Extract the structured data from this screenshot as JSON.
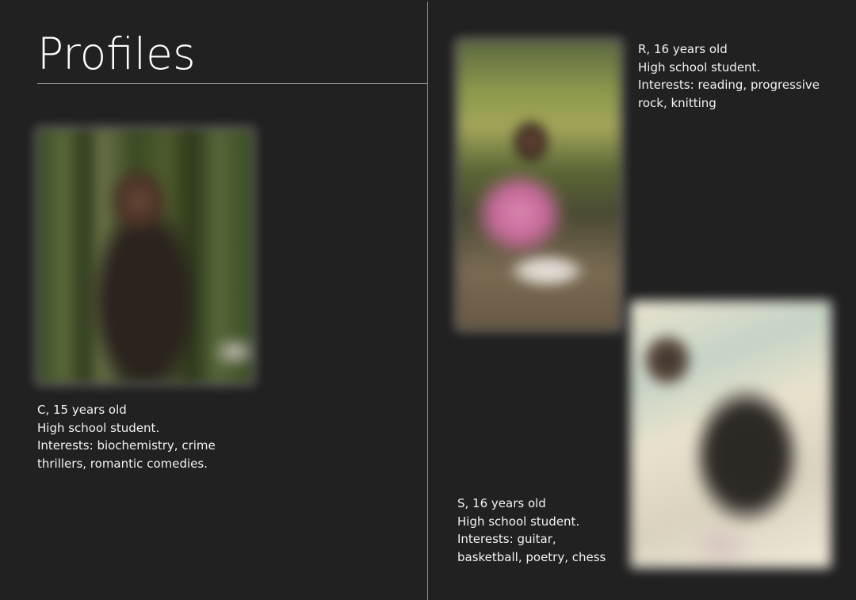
{
  "page": {
    "title": "Profiles"
  },
  "profiles": [
    {
      "id_label": "C, 15 years old",
      "occupation": "High school student.",
      "interests_line1": "Interests: biochemistry, crime",
      "interests_line2": "thrillers, romantic comedies."
    },
    {
      "id_label": "R, 16 years old",
      "occupation": "High school student.",
      "interests_line1": "Interests: reading, progressive",
      "interests_line2": "rock, knitting"
    },
    {
      "id_label": "S, 16 years old",
      "occupation": "High school student.",
      "interests_line1": "Interests: guitar,",
      "interests_line2": "basketball, poetry, chess"
    }
  ],
  "colors": {
    "background": "#222121",
    "text": "#ffffff",
    "rule": "#9a9a9a"
  }
}
